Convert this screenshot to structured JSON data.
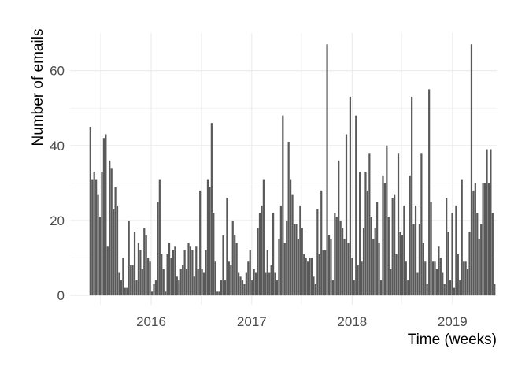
{
  "chart_data": {
    "type": "bar",
    "title": "",
    "xlabel": "Time (weeks)",
    "ylabel": "Number of emails",
    "x_tick_labels": [
      "2016",
      "2017",
      "2018",
      "2019"
    ],
    "y_tick_labels": [
      "0",
      "20",
      "40",
      "60"
    ],
    "ylim": [
      -2.5,
      70
    ],
    "grid": true,
    "bar_color": "#595959",
    "grid_color": "#ebebeb",
    "start_week": "2015-05-25",
    "values": [
      45,
      31,
      33,
      31,
      27,
      21,
      33,
      42,
      43,
      13,
      36,
      34,
      23,
      29,
      24,
      6,
      4,
      10,
      2,
      2,
      20,
      8,
      8,
      17,
      4,
      14,
      12,
      7,
      18,
      16,
      10,
      9,
      1,
      3,
      4,
      25,
      31,
      11,
      7,
      1,
      11,
      14,
      10,
      12,
      13,
      5,
      4,
      7,
      8,
      12,
      7,
      14,
      13,
      12,
      5,
      13,
      7,
      28,
      7,
      6,
      12,
      31,
      29,
      46,
      22,
      9,
      1,
      1,
      4,
      16,
      4,
      26,
      9,
      8,
      20,
      16,
      14,
      6,
      5,
      4,
      3,
      6,
      9,
      12,
      4,
      7,
      6,
      18,
      22,
      24,
      31,
      6,
      12,
      6,
      8,
      22,
      6,
      4,
      15,
      24,
      48,
      14,
      20,
      41,
      31,
      27,
      19,
      19,
      15,
      24,
      18,
      11,
      10,
      9,
      10,
      10,
      5,
      3,
      23,
      11,
      28,
      12,
      12,
      67,
      16,
      15,
      4,
      22,
      21,
      36,
      20,
      18,
      15,
      43,
      14,
      53,
      10,
      4,
      48,
      8,
      33,
      9,
      18,
      33,
      28,
      38,
      21,
      15,
      18,
      25,
      14,
      4,
      32,
      30,
      40,
      21,
      7,
      26,
      27,
      11,
      38,
      17,
      16,
      24,
      9,
      4,
      32,
      53,
      19,
      24,
      6,
      19,
      38,
      14,
      9,
      3,
      55,
      25,
      9,
      9,
      7,
      13,
      10,
      6,
      3,
      26,
      17,
      4,
      22,
      2,
      24,
      11,
      4,
      31,
      9,
      9,
      7,
      17,
      67,
      28,
      30,
      22,
      15,
      19,
      30,
      30,
      39,
      30,
      39,
      22,
      3
    ]
  }
}
